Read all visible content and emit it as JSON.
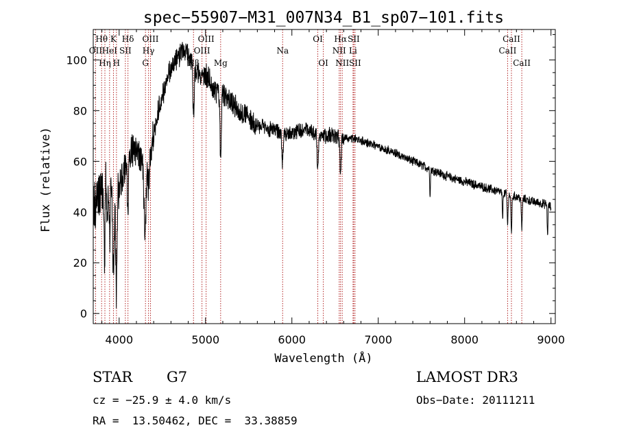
{
  "chart_data": {
    "type": "line",
    "title": "spec−55907−M31_007N34_B1_sp07−101.fits",
    "xlabel": "Wavelength (Å)",
    "ylabel": "Flux (relative)",
    "xlim": [
      3700,
      9050
    ],
    "ylim": [
      -4,
      112
    ],
    "xticks": [
      4000,
      5000,
      6000,
      7000,
      8000,
      9000
    ],
    "yticks": [
      0,
      20,
      40,
      60,
      80,
      100
    ],
    "xtick_labels": [
      "4000",
      "5000",
      "6000",
      "7000",
      "8000",
      "9000"
    ],
    "ytick_labels": [
      "0",
      "20",
      "40",
      "60",
      "80",
      "100"
    ],
    "continuum": {
      "x": [
        3700,
        3750,
        3800,
        3850,
        3900,
        3950,
        4000,
        4050,
        4100,
        4150,
        4200,
        4250,
        4300,
        4350,
        4400,
        4450,
        4500,
        4550,
        4600,
        4650,
        4700,
        4750,
        4800,
        4850,
        4900,
        4950,
        5000,
        5050,
        5100,
        5150,
        5200,
        5300,
        5400,
        5500,
        5600,
        5700,
        5800,
        5900,
        6000,
        6100,
        6200,
        6300,
        6400,
        6500,
        6600,
        6700,
        6800,
        6900,
        7000,
        7200,
        7400,
        7600,
        7800,
        8000,
        8200,
        8400,
        8600,
        8800,
        8950,
        9000
      ],
      "y": [
        40,
        45,
        50,
        55,
        52,
        48,
        50,
        55,
        62,
        64,
        66,
        60,
        55,
        60,
        72,
        80,
        86,
        92,
        96,
        100,
        102,
        104,
        102,
        98,
        95,
        95,
        94,
        92,
        88,
        88,
        87,
        83,
        80,
        77,
        74,
        73,
        72,
        71,
        71,
        72,
        72,
        71,
        70,
        70,
        69,
        69,
        68,
        67,
        66,
        63,
        60,
        57,
        54,
        52,
        50,
        48,
        46,
        44,
        43,
        42
      ]
    },
    "absorption": [
      {
        "x": 3934,
        "depth": 38,
        "width": 12
      },
      {
        "x": 3969,
        "depth": 40,
        "width": 12
      },
      {
        "x": 3830,
        "depth": 30,
        "width": 10
      },
      {
        "x": 3860,
        "depth": 22,
        "width": 10
      },
      {
        "x": 3890,
        "depth": 25,
        "width": 10
      },
      {
        "x": 4101,
        "depth": 20,
        "width": 10
      },
      {
        "x": 4300,
        "depth": 24,
        "width": 15
      },
      {
        "x": 4340,
        "depth": 10,
        "width": 10
      },
      {
        "x": 4861,
        "depth": 18,
        "width": 10
      },
      {
        "x": 5175,
        "depth": 25,
        "width": 12
      },
      {
        "x": 5890,
        "depth": 12,
        "width": 10
      },
      {
        "x": 6300,
        "depth": 15,
        "width": 10
      },
      {
        "x": 6563,
        "depth": 15,
        "width": 10
      },
      {
        "x": 8498,
        "depth": 12,
        "width": 8
      },
      {
        "x": 8542,
        "depth": 14,
        "width": 8
      },
      {
        "x": 8662,
        "depth": 12,
        "width": 8
      },
      {
        "x": 8440,
        "depth": 10,
        "width": 6
      },
      {
        "x": 7600,
        "depth": 10,
        "width": 6
      },
      {
        "x": 8960,
        "depth": 12,
        "width": 6
      }
    ],
    "noise": [
      {
        "until": 4000,
        "amp": 9
      },
      {
        "until": 4400,
        "amp": 6
      },
      {
        "until": 5600,
        "amp": 4
      },
      {
        "until": 6600,
        "amp": 2.8
      },
      {
        "until": 9100,
        "amp": 1.6
      }
    ],
    "lines": [
      {
        "name": "Hθ",
        "x": 3797,
        "row": 1
      },
      {
        "name": "OII",
        "x": 3727,
        "row": 2
      },
      {
        "name": "Hη",
        "x": 3835,
        "row": 3
      },
      {
        "name": "HeI",
        "x": 3889,
        "row": 2
      },
      {
        "name": "K",
        "x": 3934,
        "row": 1
      },
      {
        "name": "H",
        "x": 3969,
        "row": 3
      },
      {
        "name": "SII",
        "x": 4072,
        "row": 2
      },
      {
        "name": "Hδ",
        "x": 4102,
        "row": 1
      },
      {
        "name": "OIII",
        "x": 4363,
        "row": 1
      },
      {
        "name": "Hγ",
        "x": 4340,
        "row": 2
      },
      {
        "name": "G",
        "x": 4305,
        "row": 3
      },
      {
        "name": "OIII",
        "x": 5007,
        "row": 1
      },
      {
        "name": "OIII",
        "x": 4959,
        "row": 2
      },
      {
        "name": "Hβ",
        "x": 4861,
        "row": 3
      },
      {
        "name": "Mg",
        "x": 5175,
        "row": 3
      },
      {
        "name": "Na",
        "x": 5893,
        "row": 2
      },
      {
        "name": "OI",
        "x": 6300,
        "row": 1
      },
      {
        "name": "OI",
        "x": 6364,
        "row": 3
      },
      {
        "name": "Hα",
        "x": 6563,
        "row": 1
      },
      {
        "name": "NII",
        "x": 6548,
        "row": 2
      },
      {
        "name": "NII",
        "x": 6583,
        "row": 3
      },
      {
        "name": "SII",
        "x": 6716,
        "row": 1
      },
      {
        "name": "Li",
        "x": 6708,
        "row": 2
      },
      {
        "name": "SII",
        "x": 6731,
        "row": 3
      },
      {
        "name": "CaII",
        "x": 8542,
        "row": 1
      },
      {
        "name": "CaII",
        "x": 8498,
        "row": 2
      },
      {
        "name": "CaII",
        "x": 8662,
        "row": 3
      }
    ]
  },
  "info": {
    "class": "STAR",
    "subclass": "G7",
    "survey": "LAMOST DR3",
    "cz": "cz = −25.9 ± 4.0 km/s",
    "obs_date": "Obs−Date: 20111211",
    "coords": "RA =  13.50462, DEC =  33.38859"
  },
  "colors": {
    "spectrum": "#000000",
    "line_marker": "#b22222",
    "axis": "#000000"
  }
}
